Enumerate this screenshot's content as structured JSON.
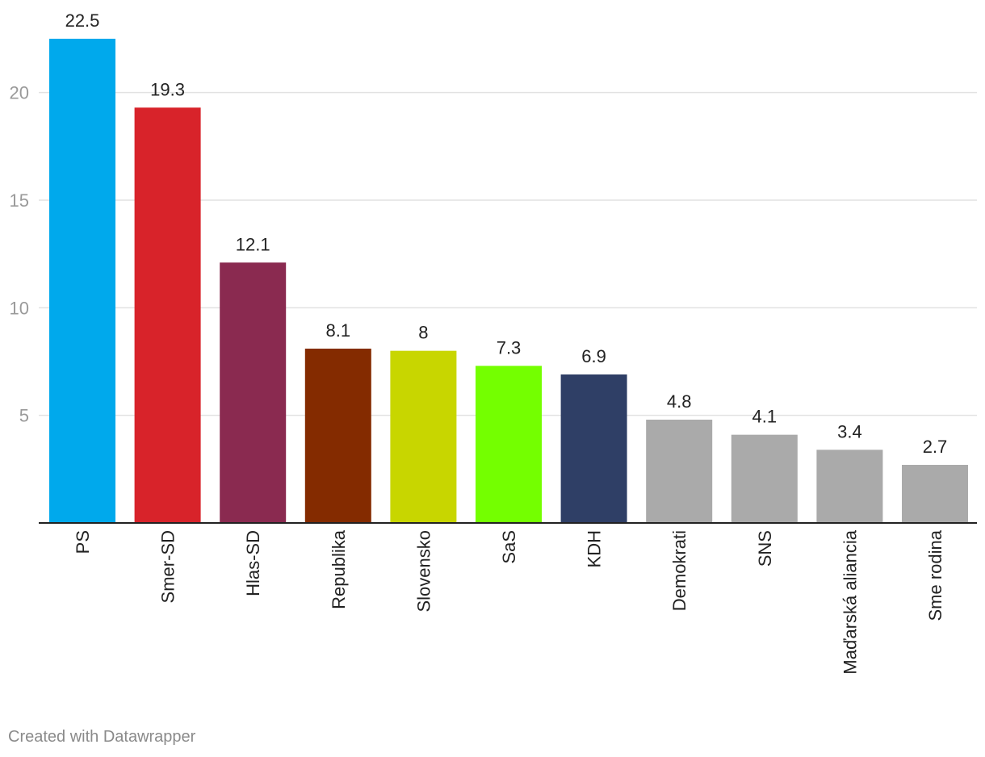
{
  "chart_data": {
    "type": "bar",
    "title": "",
    "xlabel": "",
    "ylabel": "",
    "ylim": [
      0,
      22.5
    ],
    "yticks": [
      5,
      10,
      15,
      20
    ],
    "grid": true,
    "categories": [
      "PS",
      "Smer-SD",
      "Hlas-SD",
      "Republika",
      "Slovensko",
      "SaS",
      "KDH",
      "Demokrati",
      "SNS",
      "Maďarská aliancia",
      "Sme rodina"
    ],
    "values": [
      22.5,
      19.3,
      12.1,
      8.1,
      8,
      7.3,
      6.9,
      4.8,
      4.1,
      3.4,
      2.7
    ],
    "value_labels": [
      "22.5",
      "19.3",
      "12.1",
      "8.1",
      "8",
      "7.3",
      "6.9",
      "4.8",
      "4.1",
      "3.4",
      "2.7"
    ],
    "colors": [
      "#00a9ec",
      "#d8232a",
      "#8a2a50",
      "#842b00",
      "#c8d600",
      "#74ff00",
      "#2f3f66",
      "#aaaaaa",
      "#aaaaaa",
      "#aaaaaa",
      "#aaaaaa"
    ]
  },
  "footer": {
    "credit": "Created with Datawrapper"
  }
}
